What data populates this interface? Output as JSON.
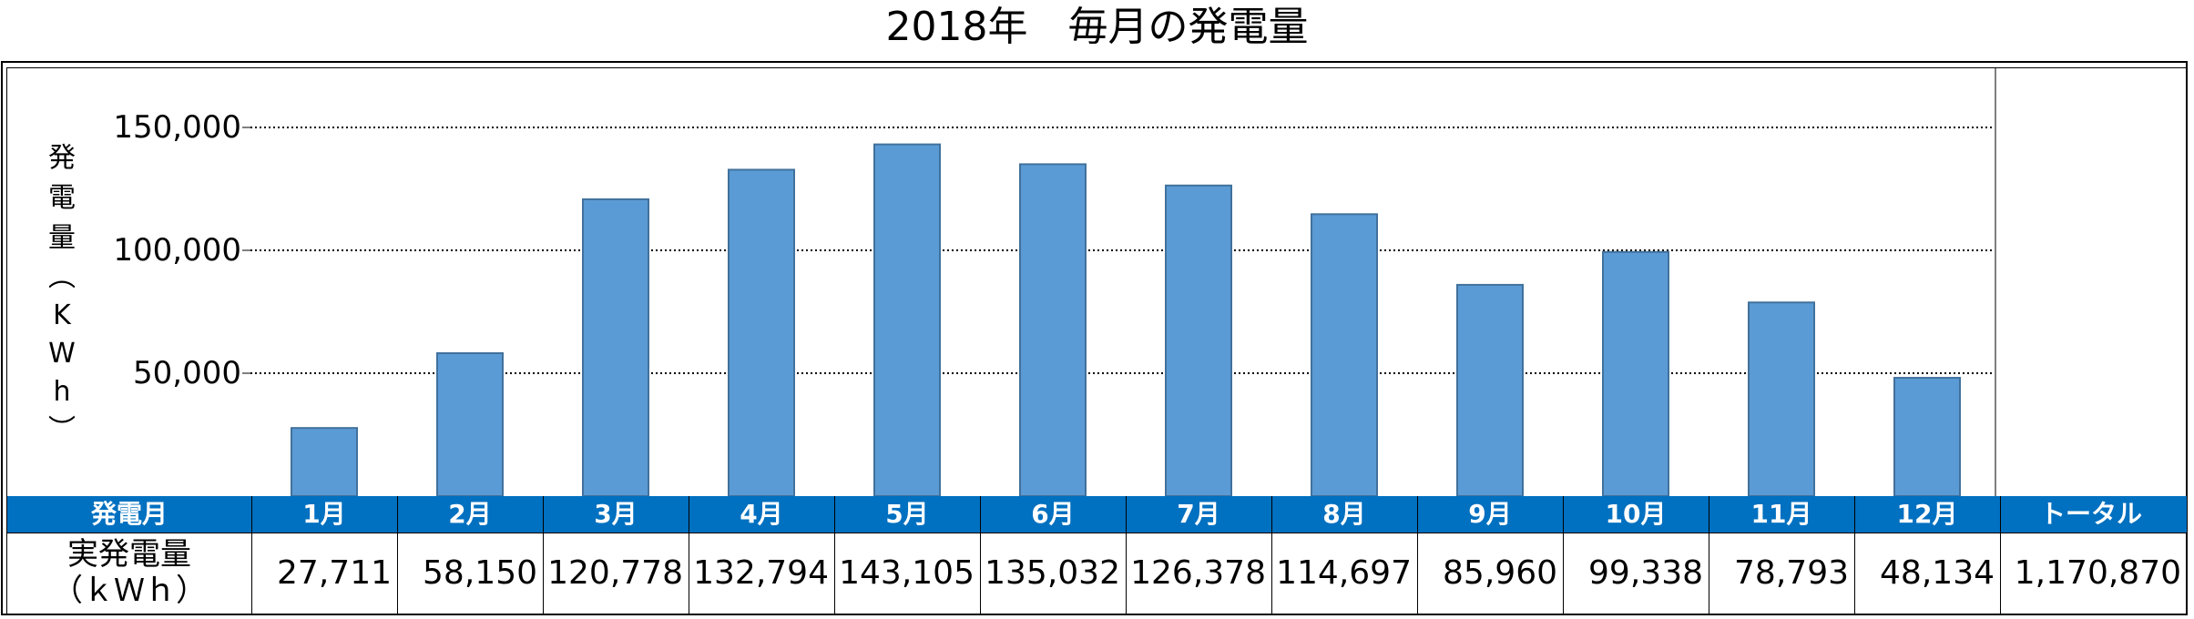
{
  "chart_data": {
    "type": "bar",
    "title": "2018年　毎月の発電量",
    "ylabel": "発電量（KWh）",
    "ylabel_chars": [
      "発",
      "電",
      "量",
      "︵",
      "K",
      "W",
      "h",
      "︶"
    ],
    "ylim": [
      0,
      150000
    ],
    "yticks": [
      "50,000",
      "100,000",
      "150,000"
    ],
    "ytick_values": [
      50000,
      100000,
      150000
    ],
    "grid": true,
    "categories": [
      "1月",
      "2月",
      "3月",
      "4月",
      "5月",
      "6月",
      "7月",
      "8月",
      "9月",
      "10月",
      "11月",
      "12月"
    ],
    "values": [
      27711,
      58150,
      120778,
      132794,
      143105,
      135032,
      126378,
      114697,
      85960,
      99338,
      78793,
      48134
    ],
    "bar_color": "#5b9bd5"
  },
  "table": {
    "header_label": "発電月",
    "total_label": "トータル",
    "row_label_line1": "実発電量",
    "row_label_line2": "（ｋＷｈ）",
    "values_text": [
      "27,711",
      "58,150",
      "120,778",
      "132,794",
      "143,105",
      "135,032",
      "126,378",
      "114,697",
      "85,960",
      "99,338",
      "78,793",
      "48,134"
    ],
    "total_text": "1,170,870",
    "header_color": "#0070c0"
  }
}
